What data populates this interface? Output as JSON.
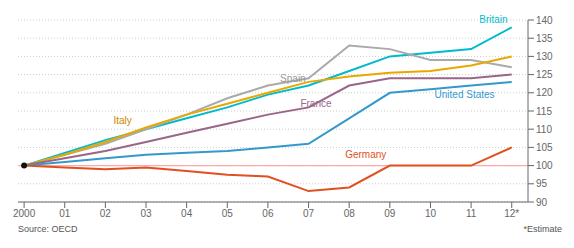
{
  "chart_data": {
    "type": "line",
    "x": [
      2000,
      2001,
      2002,
      2003,
      2004,
      2005,
      2006,
      2007,
      2008,
      2009,
      2010,
      2011,
      2012
    ],
    "xlim": [
      1999.85,
      2012.4
    ],
    "xticks": [
      2000,
      {
        "value": 2001,
        "label": "01"
      },
      {
        "value": 2002,
        "label": "02"
      },
      {
        "value": 2003,
        "label": "03"
      },
      {
        "value": 2004,
        "label": "04"
      },
      {
        "value": 2005,
        "label": "05"
      },
      {
        "value": 2006,
        "label": "06"
      },
      {
        "value": 2007,
        "label": "07"
      },
      {
        "value": 2008,
        "label": "08"
      },
      {
        "value": 2009,
        "label": "09"
      },
      {
        "value": 2010,
        "label": "10"
      },
      {
        "value": 2011,
        "label": "11"
      },
      {
        "value": 2012,
        "label": "12*"
      }
    ],
    "ylim": [
      90,
      140
    ],
    "yticks": [
      90,
      95,
      100,
      105,
      110,
      115,
      120,
      125,
      130,
      135,
      140
    ],
    "grid": true,
    "series": [
      {
        "name": "Britain",
        "color": "#00BBCC",
        "values": [
          100,
          103.5,
          107,
          110,
          113,
          116,
          119.5,
          122,
          126,
          130,
          131,
          132,
          138
        ]
      },
      {
        "name": "Spain",
        "color": "#AAAAAA",
        "values": [
          100,
          103,
          106,
          110,
          114,
          118.5,
          122,
          124,
          133,
          132,
          129,
          129,
          127
        ]
      },
      {
        "name": "Italy",
        "color": "#E8A800",
        "values": [
          100,
          103,
          106.5,
          110.5,
          114,
          117,
          120,
          123,
          124.5,
          125.5,
          126,
          127.5,
          130
        ]
      },
      {
        "name": "France",
        "color": "#996688",
        "values": [
          100,
          102,
          104,
          106.5,
          109,
          111.5,
          114,
          116,
          122,
          124,
          124,
          124,
          125
        ]
      },
      {
        "name": "United States",
        "color": "#3399CC",
        "values": [
          100,
          101,
          102,
          103,
          103.5,
          104,
          105,
          106,
          113,
          120,
          121,
          122,
          123
        ]
      },
      {
        "name": "Germany",
        "color": "#E05020",
        "values": [
          100,
          99.5,
          99,
          99.5,
          98.5,
          97.5,
          97,
          93,
          94,
          100,
          100,
          100,
          105
        ]
      }
    ],
    "reference_line": {
      "value": 100,
      "color": "#FFAAAA"
    },
    "marked_point": {
      "x": 2000,
      "y": 100,
      "color": "#111111"
    },
    "annotations": [
      {
        "text": "Britain",
        "x": 2011.9,
        "y": 138.5,
        "color": "#00BBCC",
        "align": "right"
      },
      {
        "text": "Spain",
        "x": 2006.3,
        "y": 122.5,
        "color": "#999999",
        "align": "left"
      },
      {
        "text": "Italy",
        "x": 2002.2,
        "y": 111.0,
        "color": "#CC8800",
        "align": "left"
      },
      {
        "text": "France",
        "x": 2006.8,
        "y": 115.5,
        "color": "#996688",
        "align": "left"
      },
      {
        "text": "United States",
        "x": 2010.1,
        "y": 118.0,
        "color": "#3399CC",
        "align": "left"
      },
      {
        "text": "Germany",
        "x": 2007.9,
        "y": 101.5,
        "color": "#E05020",
        "align": "left"
      }
    ],
    "source": "Source: OECD",
    "footnote": "*Estimate"
  }
}
